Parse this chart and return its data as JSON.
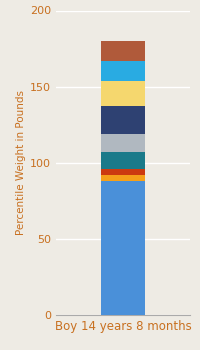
{
  "category": "Boy 14 years 8 months",
  "ylabel": "Percentile Weight in Pounds",
  "ylim": [
    0,
    200
  ],
  "yticks": [
    0,
    50,
    100,
    150,
    200
  ],
  "background_color": "#eeebe4",
  "segments": [
    {
      "value": 88,
      "color": "#4a90d9"
    },
    {
      "value": 4,
      "color": "#f5a01a"
    },
    {
      "value": 4,
      "color": "#cc3a10"
    },
    {
      "value": 11,
      "color": "#1a7a8a"
    },
    {
      "value": 12,
      "color": "#b0b8c0"
    },
    {
      "value": 18,
      "color": "#2e4172"
    },
    {
      "value": 17,
      "color": "#f5d76e"
    },
    {
      "value": 13,
      "color": "#29abe2"
    },
    {
      "value": 13,
      "color": "#b05a3a"
    }
  ],
  "xlabel_color": "#c87020",
  "ylabel_color": "#c87020",
  "tick_color": "#c87020",
  "grid_color": "#ffffff",
  "ylabel_fontsize": 7.5,
  "xlabel_fontsize": 8.5,
  "tick_fontsize": 8
}
